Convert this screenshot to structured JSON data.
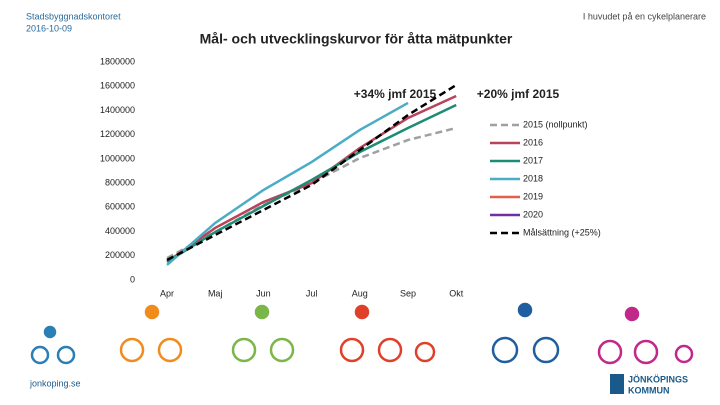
{
  "header": {
    "org": "Stadsbyggnadskontoret",
    "date": "2016-10-09",
    "tagline": "I huvudet på en cykelplanerare"
  },
  "footer": {
    "site": "jonkoping.se",
    "logo_line1": "JÖNKÖPINGS",
    "logo_line2": "KOMMUN"
  },
  "chart_data": {
    "type": "line",
    "title": "Mål- och utvecklingskurvor för åtta mätpunkter",
    "categories": [
      "Apr",
      "Maj",
      "Jun",
      "Jul",
      "Aug",
      "Sep",
      "Okt"
    ],
    "ylim": [
      0,
      1800000
    ],
    "yticks": [
      0,
      200000,
      400000,
      600000,
      800000,
      1000000,
      1200000,
      1400000,
      1600000,
      1800000
    ],
    "annotations": [
      "+34% jmf 2015",
      "+20% jmf 2015"
    ],
    "series": [
      {
        "name": "2015 (nollpunkt)",
        "color": "#a0a0a0",
        "dashed": true,
        "values": [
          181000,
          396000,
          620000,
          800000,
          1007000,
          1156000,
          1255000
        ]
      },
      {
        "name": "2016",
        "color": "#b8435a",
        "dashed": false,
        "values": [
          149000,
          430000,
          644000,
          800000,
          1090000,
          1338000,
          1519000
        ]
      },
      {
        "name": "2017",
        "color": "#1e8c74",
        "dashed": false,
        "values": [
          149000,
          396000,
          611000,
          826000,
          1057000,
          1255000,
          1445000
        ]
      },
      {
        "name": "2018",
        "color": "#4bacc6",
        "dashed": false,
        "values": [
          124000,
          471000,
          743000,
          974000,
          1239000,
          1462000,
          null
        ]
      },
      {
        "name": "2019",
        "color": "#e0604a",
        "dashed": false,
        "values": [
          null,
          null,
          null,
          null,
          null,
          null,
          null
        ]
      },
      {
        "name": "2020",
        "color": "#7030a0",
        "dashed": false,
        "values": [
          null,
          null,
          null,
          null,
          null,
          null,
          null
        ]
      },
      {
        "name": "Målsättning (+25%)",
        "color": "#000000",
        "dashed": true,
        "values": [
          165000,
          372000,
          578000,
          785000,
          1073000,
          1362000,
          1610000
        ]
      }
    ]
  }
}
